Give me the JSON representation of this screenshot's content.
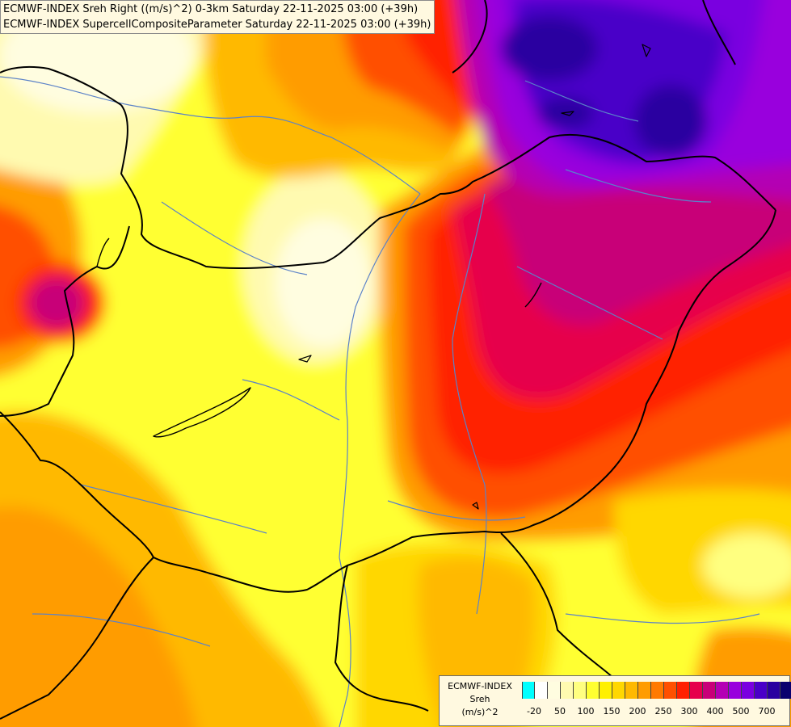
{
  "header": {
    "line1": "ECMWF-INDEX Sreh Right ((m/s)^2) 0-3km Saturday 22-11-2025 03:00 (+39h)",
    "line2": "ECMWF-INDEX SupercellCompositeParameter Saturday 22-11-2025 03:00 (+39h)"
  },
  "legend": {
    "source": "ECMWF-INDEX",
    "variable": "Sreh",
    "unit": "(m/s)^2",
    "colors": [
      "#00ffff",
      "#ffffff",
      "#fffde0",
      "#fffab0",
      "#ffff80",
      "#ffff30",
      "#fff000",
      "#ffd700",
      "#ffb900",
      "#ff9c00",
      "#ff7a00",
      "#ff5000",
      "#ff2000",
      "#e6004c",
      "#c80078",
      "#b400b4",
      "#9900dd",
      "#7a00e0",
      "#4a00c8",
      "#2a00a0",
      "#0a006e"
    ],
    "ticks": [
      "-20",
      "50",
      "100",
      "150",
      "200",
      "250",
      "300",
      "400",
      "500",
      "700"
    ]
  },
  "map": {
    "background": "#ffff30",
    "border_color": "#000000",
    "river_color": "#5b82c8"
  }
}
